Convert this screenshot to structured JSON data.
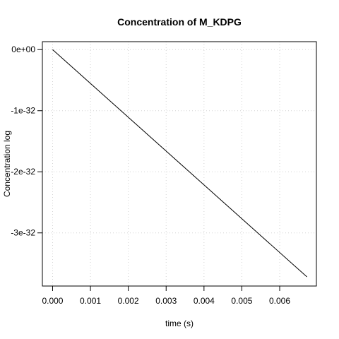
{
  "chart_data": {
    "type": "line",
    "title": "Concentration of M_KDPG",
    "xlabel": "time (s)",
    "ylabel": "Concentration log",
    "xlim": [
      -0.00027,
      0.00697
    ],
    "ylim": [
      -3.87e-32,
      1.3e-33
    ],
    "x_ticks": [
      0.0,
      0.001,
      0.002,
      0.003,
      0.004,
      0.005,
      0.006
    ],
    "x_tick_labels": [
      "0.000",
      "0.001",
      "0.002",
      "0.003",
      "0.004",
      "0.005",
      "0.006"
    ],
    "y_ticks": [
      0,
      -1e-32,
      -2e-32,
      -3e-32
    ],
    "y_tick_labels": [
      "0e+00",
      "-1e-32",
      "-2e-32",
      "-3e-32"
    ],
    "grid": true,
    "series": [
      {
        "color": "#000000",
        "x": [
          0.0,
          0.00672
        ],
        "y": [
          0.0,
          -3.72e-32
        ]
      }
    ]
  }
}
